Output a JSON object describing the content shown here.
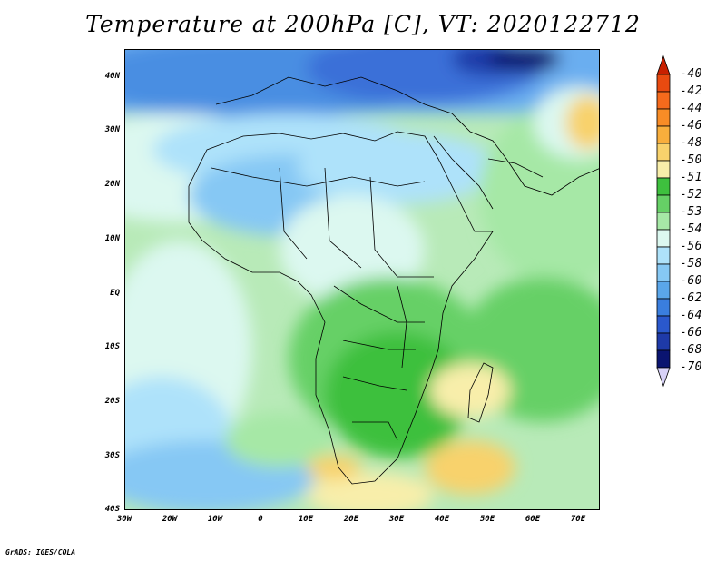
{
  "title": "Temperature at 200hPa [C], VT: 2020122712",
  "footer": "GrADS: IGES/COLA",
  "map": {
    "lat_labels": [
      "40N",
      "30N",
      "20N",
      "10N",
      "EQ",
      "10S",
      "20S",
      "30S",
      "40S"
    ],
    "lon_labels": [
      "30W",
      "20W",
      "10W",
      "0",
      "10E",
      "20E",
      "30E",
      "40E",
      "50E",
      "60E",
      "70E"
    ]
  },
  "colorbar": {
    "labels": [
      "-40",
      "-42",
      "-44",
      "-46",
      "-48",
      "-50",
      "-51",
      "-52",
      "-53",
      "-54",
      "-56",
      "-58",
      "-60",
      "-62",
      "-64",
      "-66",
      "-68",
      "-70"
    ],
    "colors": [
      "#c82000",
      "#e84a10",
      "#f56a1c",
      "#f88c26",
      "#f8ae3c",
      "#f8d26c",
      "#f8eeaa",
      "#3ec03e",
      "#66d066",
      "#a6e8a6",
      "#dcf8f0",
      "#aee2fa",
      "#86c8f4",
      "#5aa6ea",
      "#3a7ede",
      "#2a58cc",
      "#1e3aa8",
      "#0a1470",
      "#d8d2f8"
    ]
  }
}
